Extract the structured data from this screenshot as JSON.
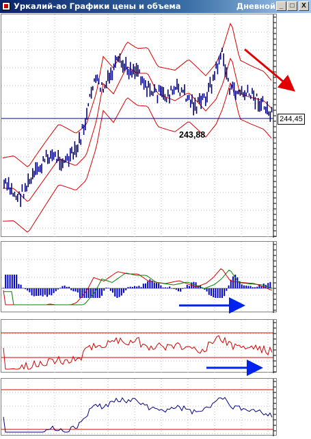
{
  "window": {
    "title": "Уркалий-ао Графики цены и объема",
    "period": "Дневной",
    "buttons": {
      "minimize": "_",
      "maximize": "□",
      "close": "X"
    }
  },
  "price_chart": {
    "current_price_tag": "244,45",
    "low_annotation": "243,88"
  },
  "colors": {
    "candles": "#000080",
    "bands": "#d40000",
    "signal_line": "#008000",
    "histogram": "#0000cc",
    "arrow_down": "#e00000",
    "arrow_right": "#0022ee"
  },
  "icons": [
    "app-icon",
    "minimize-icon",
    "maximize-icon",
    "close-icon",
    "red-trend-arrow",
    "blue-trend-arrow"
  ]
}
